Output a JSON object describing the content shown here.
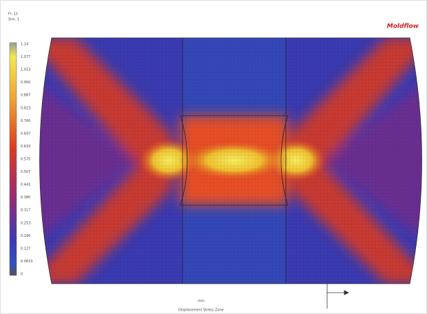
{
  "header": {
    "lines": [
      "Fr: 11",
      "Sim: 1"
    ],
    "logo": "Moldflow"
  },
  "legend": {
    "labels": [
      "1.14",
      "1.077",
      "1.013",
      "0.950",
      "0.887",
      "0.823",
      "0.760",
      "0.697",
      "0.633",
      "0.570",
      "0.507",
      "0.443",
      "0.380",
      "0.317",
      "0.253",
      "0.190",
      "0.127",
      "0.0633",
      "0"
    ]
  },
  "footer": {
    "unit": "mm",
    "caption": "Displacement Stress Zone"
  }
}
